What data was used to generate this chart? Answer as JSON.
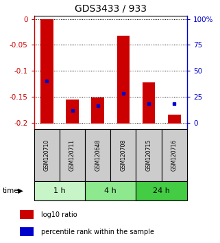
{
  "title": "GDS3433 / 933",
  "samples": [
    "GSM120710",
    "GSM120711",
    "GSM120648",
    "GSM120708",
    "GSM120715",
    "GSM120716"
  ],
  "log10_top": [
    0.0,
    -0.155,
    -0.152,
    -0.033,
    -0.123,
    -0.185
  ],
  "log10_bottom": [
    -0.202,
    -0.202,
    -0.202,
    -0.202,
    -0.202,
    -0.202
  ],
  "percentile_y": [
    -0.12,
    -0.177,
    -0.167,
    -0.143,
    -0.163,
    -0.163
  ],
  "ylim": [
    -0.212,
    0.006
  ],
  "yticks_left": [
    0.0,
    -0.05,
    -0.1,
    -0.15,
    -0.2
  ],
  "yticks_left_labels": [
    "0",
    "-0.05",
    "-0.1",
    "-0.15",
    "-0.2"
  ],
  "yticks_right_pct": [
    "100%",
    "75",
    "50",
    "25",
    "0"
  ],
  "yticks_right_y": [
    0.0,
    -0.05,
    -0.1,
    -0.15,
    -0.2
  ],
  "groups": [
    {
      "label": "1 h",
      "cols": [
        0,
        1
      ],
      "color": "#c8f5c8"
    },
    {
      "label": "4 h",
      "cols": [
        2,
        3
      ],
      "color": "#8ee88e"
    },
    {
      "label": "24 h",
      "cols": [
        4,
        5
      ],
      "color": "#44cc44"
    }
  ],
  "bar_color": "#cc0000",
  "dot_color": "#0000cc",
  "sample_bg": "#cccccc",
  "left_axis_color": "#cc0000",
  "right_axis_color": "#0000cc",
  "bar_width": 0.5,
  "legend_items": [
    "log10 ratio",
    "percentile rank within the sample"
  ],
  "fig_width": 3.21,
  "fig_height": 3.54,
  "dpi": 100
}
